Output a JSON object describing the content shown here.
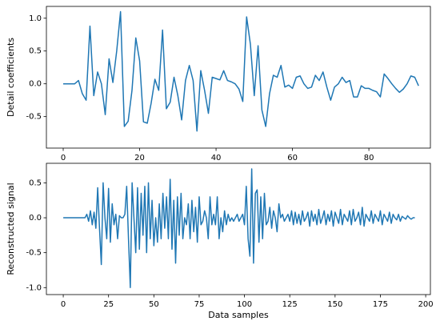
{
  "chart_data": [
    {
      "type": "line",
      "ylabel": "Detail coefficients",
      "x": [
        0,
        1,
        2,
        3,
        4,
        5,
        6,
        7,
        8,
        9,
        10,
        11,
        12,
        13,
        14,
        15,
        16,
        17,
        18,
        19,
        20,
        21,
        22,
        23,
        24,
        25,
        26,
        27,
        28,
        29,
        30,
        31,
        32,
        33,
        34,
        35,
        36,
        37,
        38,
        39,
        40,
        41,
        42,
        43,
        44,
        45,
        46,
        47,
        48,
        49,
        50,
        51,
        52,
        53,
        54,
        55,
        56,
        57,
        58,
        59,
        60,
        61,
        62,
        63,
        64,
        65,
        66,
        67,
        68,
        69,
        70,
        71,
        72,
        73,
        74,
        75,
        76,
        77,
        78,
        79,
        80,
        81,
        82,
        83,
        84,
        85,
        86,
        87,
        88,
        89,
        90,
        91,
        92,
        93
      ],
      "series": [
        {
          "color": "#1f77b4",
          "values": [
            0,
            0,
            0,
            0,
            0.05,
            -0.15,
            -0.25,
            0.88,
            -0.18,
            0.18,
            0,
            -0.47,
            0.38,
            0.02,
            0.5,
            1.1,
            -0.65,
            -0.57,
            -0.1,
            0.7,
            0.35,
            -0.58,
            -0.6,
            -0.3,
            0.07,
            -0.1,
            0.82,
            -0.38,
            -0.28,
            0.1,
            -0.18,
            -0.55,
            0.05,
            0.28,
            0.05,
            -0.72,
            0.2,
            -0.1,
            -0.45,
            0.1,
            0.08,
            0.06,
            0.2,
            0.05,
            0.03,
            0,
            -0.08,
            -0.27,
            1.02,
            0.6,
            -0.18,
            0.58,
            -0.4,
            -0.65,
            -0.15,
            0.13,
            0.1,
            0.28,
            -0.05,
            -0.02,
            -0.07,
            0.1,
            0.12,
            0,
            -0.07,
            -0.05,
            0.13,
            0.05,
            0.18,
            -0.05,
            -0.25,
            -0.05,
            0,
            0.1,
            0.02,
            0.05,
            -0.2,
            -0.2,
            -0.03,
            -0.07,
            -0.07,
            -0.1,
            -0.12,
            -0.2,
            0.15,
            0.08,
            0,
            -0.07,
            -0.13,
            -0.08,
            0,
            0.12,
            0.1,
            -0.03
          ]
        }
      ],
      "xlim": [
        -4.4,
        96.1
      ],
      "ylim": [
        -0.98,
        1.18
      ],
      "xticks": [
        0,
        20,
        40,
        60,
        80
      ],
      "yticks": [
        -0.5,
        {
          "value": 0,
          "label": "0.0"
        },
        0.5,
        {
          "value": 1,
          "label": "1.0"
        }
      ]
    },
    {
      "type": "line",
      "xlabel": "Data samples",
      "ylabel": "Reconstructed signal",
      "x": [
        0,
        1,
        2,
        3,
        4,
        5,
        6,
        7,
        8,
        9,
        10,
        11,
        12,
        13,
        14,
        15,
        16,
        17,
        18,
        19,
        20,
        21,
        22,
        23,
        24,
        25,
        26,
        27,
        28,
        29,
        30,
        31,
        32,
        33,
        34,
        35,
        36,
        37,
        38,
        39,
        40,
        41,
        42,
        43,
        44,
        45,
        46,
        47,
        48,
        49,
        50,
        51,
        52,
        53,
        54,
        55,
        56,
        57,
        58,
        59,
        60,
        61,
        62,
        63,
        64,
        65,
        66,
        67,
        68,
        69,
        70,
        71,
        72,
        73,
        74,
        75,
        76,
        77,
        78,
        79,
        80,
        81,
        82,
        83,
        84,
        85,
        86,
        87,
        88,
        89,
        90,
        91,
        92,
        93,
        94,
        95,
        96,
        97,
        98,
        99,
        100,
        101,
        102,
        103,
        104,
        105,
        106,
        107,
        108,
        109,
        110,
        111,
        112,
        113,
        114,
        115,
        116,
        117,
        118,
        119,
        120,
        121,
        122,
        123,
        124,
        125,
        126,
        127,
        128,
        129,
        130,
        131,
        132,
        133,
        134,
        135,
        136,
        137,
        138,
        139,
        140,
        141,
        142,
        143,
        144,
        145,
        146,
        147,
        148,
        149,
        150,
        151,
        152,
        153,
        154,
        155,
        156,
        157,
        158,
        159,
        160,
        161,
        162,
        163,
        164,
        165,
        166,
        167,
        168,
        169,
        170,
        171,
        172,
        173,
        174,
        175,
        176,
        177,
        178,
        179,
        180,
        181,
        182,
        183,
        184,
        185,
        186,
        187,
        188,
        189,
        190,
        191,
        192,
        193,
        194
      ],
      "series": [
        {
          "color": "#1f77b4",
          "values": [
            0,
            0,
            0,
            0,
            0,
            0,
            0,
            0,
            0,
            0,
            0,
            0,
            0,
            0.05,
            -0.05,
            0.1,
            -0.1,
            0.08,
            -0.15,
            0.43,
            -0.15,
            -0.67,
            0.5,
            0,
            -0.3,
            0.42,
            -0.35,
            0.2,
            -0.1,
            0.05,
            -0.3,
            0.03,
            0,
            0,
            0.05,
            0.45,
            -0.3,
            -1.0,
            0.5,
            0,
            -0.5,
            0.43,
            -0.45,
            0.35,
            -0.25,
            0.45,
            -0.5,
            0.5,
            -0.3,
            0.25,
            -0.4,
            0,
            -0.35,
            0.2,
            -0.3,
            0.35,
            -0.15,
            0.3,
            -0.3,
            0.55,
            -0.45,
            0.25,
            -0.65,
            0.3,
            -0.25,
            0.35,
            -0.3,
            0,
            -0.1,
            0.2,
            -0.3,
            0.25,
            -0.2,
            0.15,
            -0.35,
            0.3,
            -0.1,
            -0.05,
            0.1,
            0,
            -0.3,
            0.3,
            -0.1,
            0.05,
            -0.1,
            0.3,
            -0.3,
            0,
            -0.2,
            0.1,
            -0.1,
            0.05,
            -0.05,
            0,
            -0.05,
            0,
            0.05,
            -0.05,
            0,
            0.05,
            -0.1,
            0.45,
            -0.3,
            -0.55,
            0.7,
            -0.65,
            0.35,
            0.4,
            -0.35,
            0.3,
            -0.3,
            0.35,
            -0.1,
            -0.05,
            0.15,
            -0.15,
            0.1,
            0,
            -0.2,
            0.2,
            0,
            0.05,
            -0.05,
            0,
            0.05,
            -0.05,
            0.1,
            -0.1,
            0.08,
            -0.08,
            0.05,
            -0.1,
            0.1,
            -0.05,
            0,
            0.08,
            -0.12,
            0.1,
            -0.05,
            0.05,
            -0.1,
            0.12,
            -0.08,
            0,
            0.1,
            -0.1,
            0.05,
            -0.05,
            0.1,
            -0.12,
            0.08,
            0,
            -0.08,
            0.12,
            -0.1,
            0.05,
            0,
            -0.05,
            0.1,
            -0.1,
            0.12,
            -0.05,
            0,
            0.08,
            -0.1,
            0.15,
            -0.12,
            0.05,
            0,
            -0.05,
            0.1,
            -0.08,
            0.05,
            0,
            -0.05,
            0.1,
            -0.1,
            0.05,
            0,
            -0.05,
            0.08,
            -0.08,
            0.05,
            0,
            -0.03,
            0.05,
            -0.05,
            0.02,
            0,
            -0.02,
            0.03,
            0,
            -0.02,
            0,
            0
          ]
        }
      ],
      "xlim": [
        -9.3,
        202.6
      ],
      "ylim": [
        -1.1,
        0.78
      ],
      "xticks": [
        0,
        25,
        50,
        75,
        100,
        125,
        150,
        175,
        200
      ],
      "yticks": [
        {
          "value": -1,
          "label": "-1.0"
        },
        -0.5,
        {
          "value": 0,
          "label": "0.0"
        },
        0.5
      ]
    }
  ]
}
